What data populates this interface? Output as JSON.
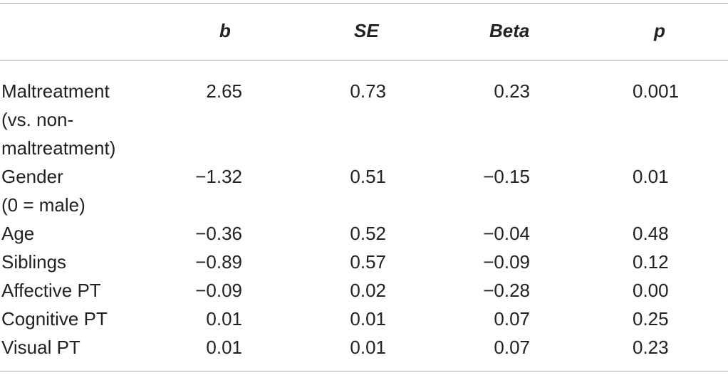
{
  "table": {
    "headers": {
      "label": "",
      "b": "b",
      "se": "SE",
      "beta": "Beta",
      "p": "p"
    },
    "rows": [
      {
        "label_lines": [
          "Maltreatment",
          "(vs. non-",
          "maltreatment)"
        ],
        "b": "2.65",
        "se": "0.73",
        "beta": "0.23",
        "p": "0.001"
      },
      {
        "label_lines": [
          "Gender",
          "(0 = male)"
        ],
        "b": "−1.32",
        "se": "0.51",
        "beta": "−0.15",
        "p": "0.01"
      },
      {
        "label_lines": [
          "Age"
        ],
        "b": "−0.36",
        "se": "0.52",
        "beta": "−0.04",
        "p": "0.48"
      },
      {
        "label_lines": [
          "Siblings"
        ],
        "b": "−0.89",
        "se": "0.57",
        "beta": "−0.09",
        "p": "0.12"
      },
      {
        "label_lines": [
          "Affective PT"
        ],
        "b": "−0.09",
        "se": "0.02",
        "beta": "−0.28",
        "p": "0.00"
      },
      {
        "label_lines": [
          "Cognitive PT"
        ],
        "b": "0.01",
        "se": "0.01",
        "beta": "0.07",
        "p": "0.25"
      },
      {
        "label_lines": [
          "Visual PT"
        ],
        "b": "0.01",
        "se": "0.01",
        "beta": "0.07",
        "p": "0.23"
      }
    ]
  }
}
